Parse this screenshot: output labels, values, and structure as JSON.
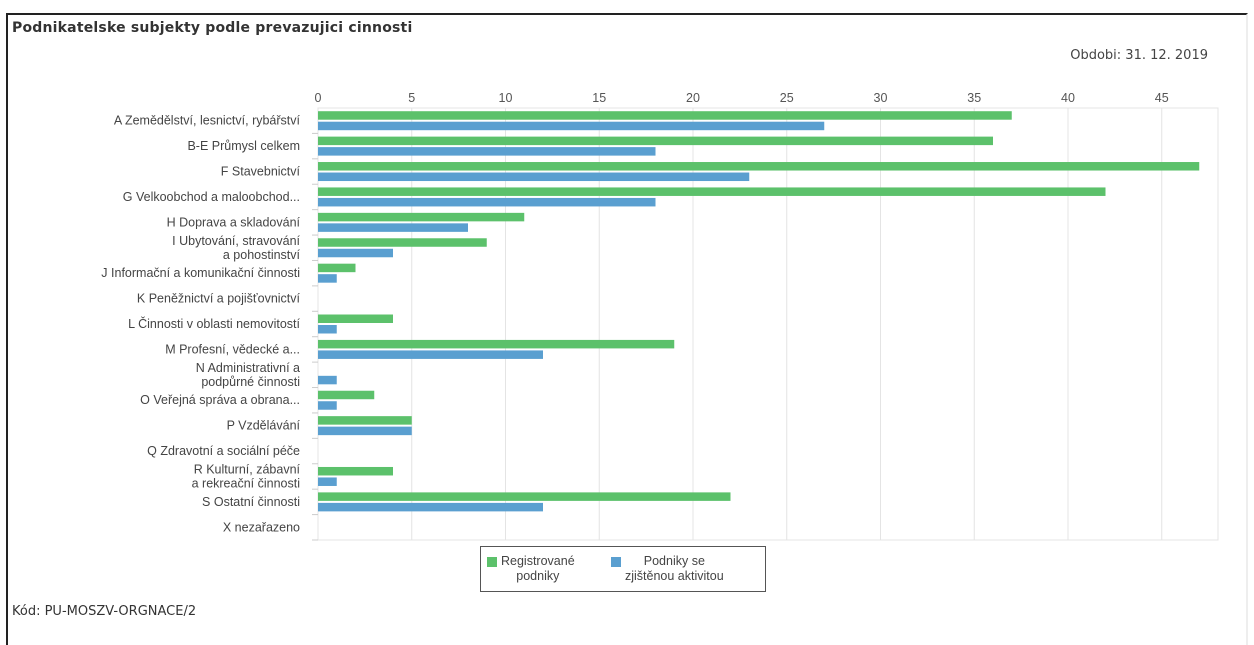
{
  "header": {
    "title": "Podnikatelske subjekty podle prevazujici cinnosti",
    "period": "Obdobi: 31. 12. 2019",
    "code": "Kód: PU-MOSZV-ORGNACE/2"
  },
  "colors": {
    "registered": "#5cc16b",
    "active": "#5a9fd0",
    "grid": "#e4e4e4"
  },
  "chart_data": {
    "type": "bar",
    "orientation": "horizontal",
    "title": "Podnikatelske subjekty podle prevazujici cinnosti",
    "xlim": [
      0,
      48
    ],
    "xticks": [
      0,
      5,
      10,
      15,
      20,
      25,
      30,
      35,
      40,
      45
    ],
    "grid": true,
    "legend_position": "bottom",
    "categories": [
      [
        "A Zemědělství, lesnictví, rybářství"
      ],
      [
        "B-E Průmysl celkem"
      ],
      [
        "F Stavebnictví"
      ],
      [
        "G Velkoobchod a maloobchod..."
      ],
      [
        "H Doprava a skladování"
      ],
      [
        "I Ubytování, stravování",
        "a pohostinství"
      ],
      [
        "J Informační a komunikační činnosti"
      ],
      [
        "K Peněžnictví a pojišťovnictví"
      ],
      [
        "L Činnosti v oblasti nemovitostí"
      ],
      [
        "M Profesní, vědecké a..."
      ],
      [
        "N Administrativní a",
        "podpůrné činnosti"
      ],
      [
        "O Veřejná správa a obrana..."
      ],
      [
        "P Vzdělávání"
      ],
      [
        "Q Zdravotní a sociální péče"
      ],
      [
        "R Kulturní, zábavní",
        "a rekreační činnosti"
      ],
      [
        "S Ostatní činnosti"
      ],
      [
        "X nezařazeno"
      ]
    ],
    "series": [
      {
        "name": "Registrované podniky",
        "legend_lines": [
          "Registrované",
          "podniky"
        ],
        "values": [
          37,
          36,
          47,
          42,
          11,
          9,
          2,
          0,
          4,
          19,
          0,
          3,
          5,
          0,
          4,
          22,
          0
        ]
      },
      {
        "name": "Podniky se zjištěnou aktivitou",
        "legend_lines": [
          "Podniky se",
          "zjištěnou aktivitou"
        ],
        "values": [
          27,
          18,
          23,
          18,
          8,
          4,
          1,
          0,
          1,
          12,
          1,
          1,
          5,
          0,
          1,
          12,
          0
        ]
      }
    ]
  }
}
